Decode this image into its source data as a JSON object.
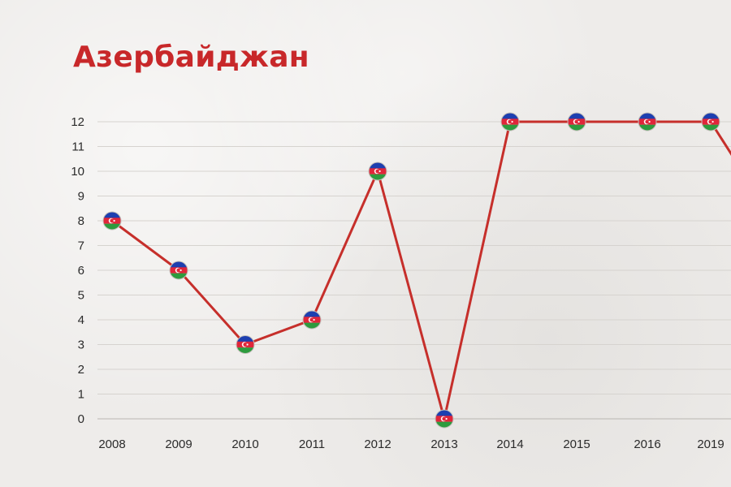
{
  "title": "Азербайджан",
  "chart_data": {
    "type": "line",
    "title": "Азербайджан",
    "xlabel": "",
    "ylabel": "",
    "categories": [
      "2008",
      "2009",
      "2010",
      "2011",
      "2012",
      "2013",
      "2014",
      "2015",
      "2016",
      "2019"
    ],
    "y_ticks": [
      0,
      1,
      2,
      3,
      4,
      5,
      6,
      7,
      8,
      9,
      10,
      11,
      12
    ],
    "ylim": [
      0,
      12
    ],
    "grid": true,
    "marker": "azerbaijan-flag",
    "colors": {
      "line": "#c62f2b",
      "flag_blue": "#1d3fb0",
      "flag_red": "#e0263a",
      "flag_green": "#2d9b3e"
    },
    "series": [
      {
        "values": [
          8,
          6,
          3,
          4,
          10,
          0,
          12,
          12,
          12,
          12
        ]
      }
    ]
  }
}
